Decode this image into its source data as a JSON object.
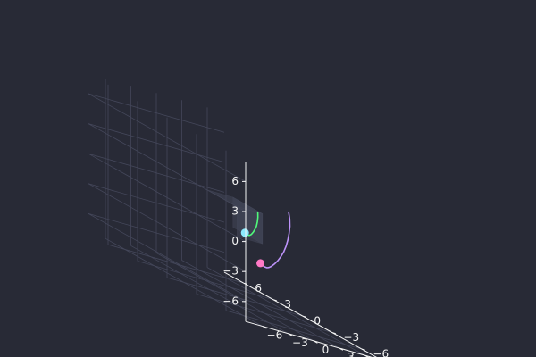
{
  "chart_data": {
    "type": "line3d",
    "title": "",
    "xlabel": "",
    "ylabel": "",
    "zlabel": "",
    "xlim": [
      -8,
      8
    ],
    "ylim": [
      -8,
      8
    ],
    "zlim": [
      -8,
      8
    ],
    "x_ticks": [
      "−6",
      "−3",
      "0",
      "3",
      "6"
    ],
    "y_ticks": [
      "−6",
      "−3",
      "0",
      "3",
      "6"
    ],
    "z_ticks": [
      "−6",
      "−3",
      "0",
      "3",
      "6"
    ],
    "grid": true,
    "legend": false,
    "background_color": "#282a36",
    "axis_color": "#f5f5f5",
    "grid_color": "#44475a",
    "cube": {
      "center": [
        0,
        0,
        0
      ],
      "half_size": 1.5,
      "color": "#44475a"
    },
    "series": [
      {
        "color": "#bd93f9",
        "marker_color": "#ff79c6",
        "x": [
          0.3,
          0.2,
          0.05,
          -0.1,
          -0.25,
          -0.35,
          -0.4,
          -0.4,
          -0.3,
          -0.1,
          0.2,
          0.6,
          1.05,
          1.5,
          1.95,
          2.3
        ],
        "y": [
          -5.2,
          -5.4,
          -5.55,
          -5.6,
          -5.6,
          -5.5,
          -5.3,
          -5.0,
          -4.6,
          -4.1,
          -3.55,
          -2.95,
          -2.35,
          -1.7,
          -1.1,
          -0.6
        ],
        "z": [
          3.4,
          2.8,
          2.1,
          1.4,
          0.7,
          0.0,
          -0.7,
          -1.35,
          -1.95,
          -2.5,
          -2.95,
          -3.3,
          -3.55,
          -3.7,
          -3.75,
          -3.75
        ]
      },
      {
        "color": "#50fa7b",
        "marker_color": "#8be9fd",
        "x": [
          -0.2,
          -0.25,
          -0.25,
          -0.2,
          -0.1,
          0.05,
          0.25,
          0.5,
          0.8,
          1.1,
          1.35
        ],
        "y": [
          -2.5,
          -2.55,
          -2.5,
          -2.35,
          -2.1,
          -1.8,
          -1.45,
          -1.05,
          -0.6,
          -0.2,
          0.15
        ],
        "z": [
          1.8,
          1.3,
          0.8,
          0.3,
          -0.15,
          -0.55,
          -0.9,
          -1.15,
          -1.3,
          -1.35,
          -1.35
        ]
      }
    ]
  }
}
